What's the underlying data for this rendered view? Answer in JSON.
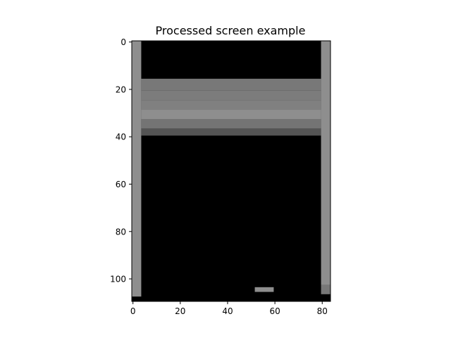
{
  "chart_data": {
    "type": "heatmap",
    "title": "Processed screen example",
    "xlabel": "",
    "ylabel": "",
    "colormap": "gray",
    "xlim": [
      -0.5,
      83.5
    ],
    "ylim": [
      109.5,
      -0.5
    ],
    "xticks": [
      0,
      20,
      40,
      60,
      80
    ],
    "yticks": [
      0,
      20,
      40,
      60,
      80,
      100
    ],
    "xticklabels": [
      "0",
      "20",
      "40",
      "60",
      "80"
    ],
    "yticklabels": [
      "0",
      "20",
      "40",
      "60",
      "80",
      "100"
    ],
    "grid": false,
    "image_size": {
      "rows": 110,
      "cols": 84
    },
    "regions": [
      {
        "name": "left-wall",
        "col_range": [
          0,
          3
        ],
        "row_range": [
          0,
          107
        ],
        "value": 142,
        "color": "#8e8e8e"
      },
      {
        "name": "left-wall-bottom",
        "col_range": [
          0,
          3
        ],
        "row_range": [
          108,
          109
        ],
        "value": 0,
        "color": "#000000"
      },
      {
        "name": "right-wall",
        "col_range": [
          80,
          83
        ],
        "row_range": [
          0,
          102
        ],
        "value": 142,
        "color": "#8e8e8e"
      },
      {
        "name": "right-wall-lower",
        "col_range": [
          80,
          83
        ],
        "row_range": [
          103,
          106
        ],
        "value": 120,
        "color": "#787878"
      },
      {
        "name": "right-wall-bottom",
        "col_range": [
          80,
          83
        ],
        "row_range": [
          107,
          109
        ],
        "value": 0,
        "color": "#000000"
      },
      {
        "name": "bricks-row-1",
        "col_range": [
          4,
          79
        ],
        "row_range": [
          16,
          20
        ],
        "value": 120,
        "color": "#787878"
      },
      {
        "name": "bricks-row-2",
        "col_range": [
          4,
          79
        ],
        "row_range": [
          21,
          24
        ],
        "value": 124,
        "color": "#7c7c7c"
      },
      {
        "name": "bricks-row-3",
        "col_range": [
          4,
          79
        ],
        "row_range": [
          25,
          28
        ],
        "value": 128,
        "color": "#808080"
      },
      {
        "name": "bricks-row-4",
        "col_range": [
          4,
          79
        ],
        "row_range": [
          29,
          32
        ],
        "value": 142,
        "color": "#8e8e8e"
      },
      {
        "name": "bricks-row-5",
        "col_range": [
          4,
          79
        ],
        "row_range": [
          33,
          36
        ],
        "value": 116,
        "color": "#747474"
      },
      {
        "name": "bricks-row-6",
        "col_range": [
          4,
          79
        ],
        "row_range": [
          37,
          39
        ],
        "value": 84,
        "color": "#545454"
      },
      {
        "name": "paddle",
        "col_range": [
          52,
          59
        ],
        "row_range": [
          104,
          105
        ],
        "value": 142,
        "color": "#8e8e8e"
      }
    ]
  }
}
